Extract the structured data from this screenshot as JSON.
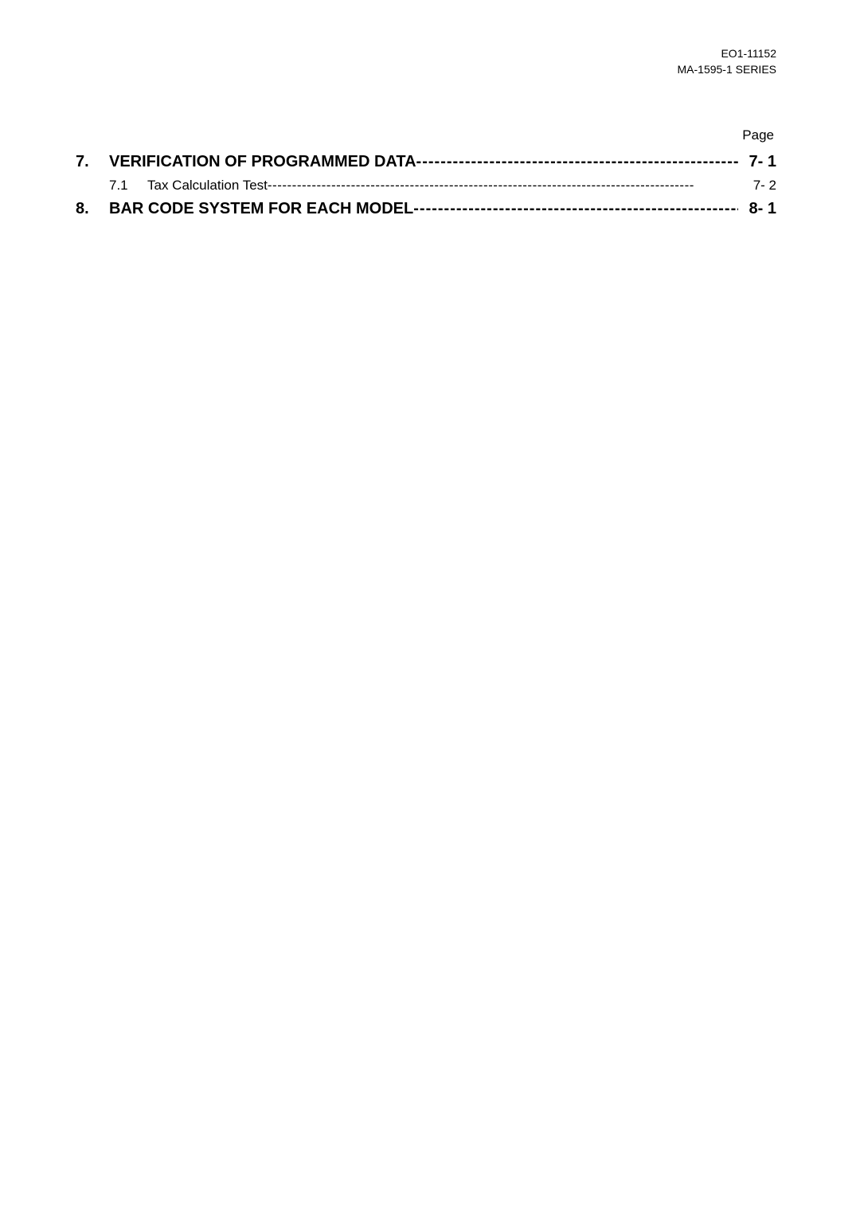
{
  "header": {
    "line1": "EO1-11152",
    "line2": "MA-1595-1 SERIES"
  },
  "page_label": "Page",
  "toc": {
    "entries": [
      {
        "level": 1,
        "number": "7.",
        "title": "VERIFICATION OF PROGRAMMED DATA",
        "leader": "-----------------------------------------------------",
        "page": "7- 1"
      },
      {
        "level": 2,
        "number": "7.1",
        "title": "Tax Calculation Test ",
        "leader": "---------------------------------------------------------------------------------------",
        "page": "7- 2"
      },
      {
        "level": 1,
        "number": "8.",
        "title": "BAR CODE SYSTEM FOR EACH MODEL",
        "leader": "------------------------------------------------------",
        "page": "8- 1"
      }
    ]
  },
  "colors": {
    "background": "#ffffff",
    "text": "#000000"
  },
  "typography": {
    "header_fontsize": 14,
    "page_label_fontsize": 17,
    "toc_level1_fontsize": 20,
    "toc_level1_weight": "bold",
    "toc_level2_fontsize": 17,
    "toc_level2_weight": "normal"
  }
}
